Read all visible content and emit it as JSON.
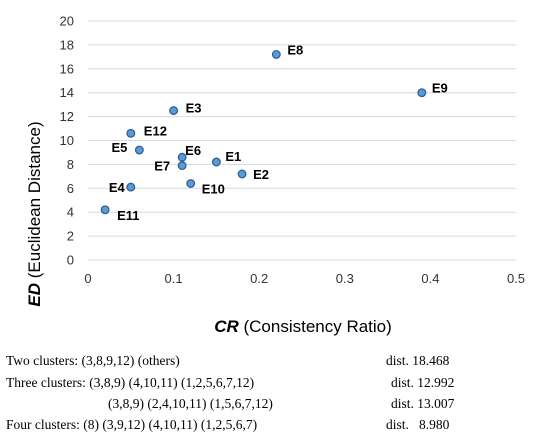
{
  "chart_data": {
    "type": "scatter",
    "xlabel_bold": "CR",
    "xlabel_rest": " (Consistency Ratio)",
    "ylabel_bold": "ED",
    "ylabel_rest": " (Euclidean Distance)",
    "xlim": [
      0,
      0.5
    ],
    "ylim": [
      0,
      20
    ],
    "xticks": [
      "0",
      "0.1",
      "0.2",
      "0.3",
      "0.4",
      "0.5"
    ],
    "yticks": [
      "0",
      "2",
      "4",
      "6",
      "8",
      "10",
      "12",
      "14",
      "16",
      "18",
      "20"
    ],
    "grid": "horizontal",
    "marker_color": "#5b9bd5",
    "points": [
      {
        "label": "E1",
        "x": 0.15,
        "y": 8.2
      },
      {
        "label": "E2",
        "x": 0.18,
        "y": 7.2
      },
      {
        "label": "E3",
        "x": 0.1,
        "y": 12.5
      },
      {
        "label": "E4",
        "x": 0.05,
        "y": 6.1
      },
      {
        "label": "E5",
        "x": 0.06,
        "y": 9.2
      },
      {
        "label": "E6",
        "x": 0.11,
        "y": 8.6
      },
      {
        "label": "E7",
        "x": 0.11,
        "y": 7.9
      },
      {
        "label": "E8",
        "x": 0.22,
        "y": 17.2
      },
      {
        "label": "E9",
        "x": 0.39,
        "y": 14.0
      },
      {
        "label": "E10",
        "x": 0.12,
        "y": 6.4
      },
      {
        "label": "E11",
        "x": 0.02,
        "y": 4.2
      },
      {
        "label": "E12",
        "x": 0.05,
        "y": 10.6
      }
    ]
  },
  "notes": [
    {
      "text": "Two clusters: (3,8,9,12) (others)",
      "dist": "dist. 18.468"
    },
    {
      "text": "Three clusters: (3,8,9) (4,10,11) (1,2,5,6,7,12)",
      "dist": "dist. 12.992"
    },
    {
      "text": "(3,8,9) (2,4,10,11) (1,5,6,7,12)",
      "dist": "dist. 13.007"
    },
    {
      "text": "Four clusters: (8) (3,9,12) (4,10,11) (1,2,5,6,7)",
      "dist": "dist.   8.980"
    }
  ]
}
